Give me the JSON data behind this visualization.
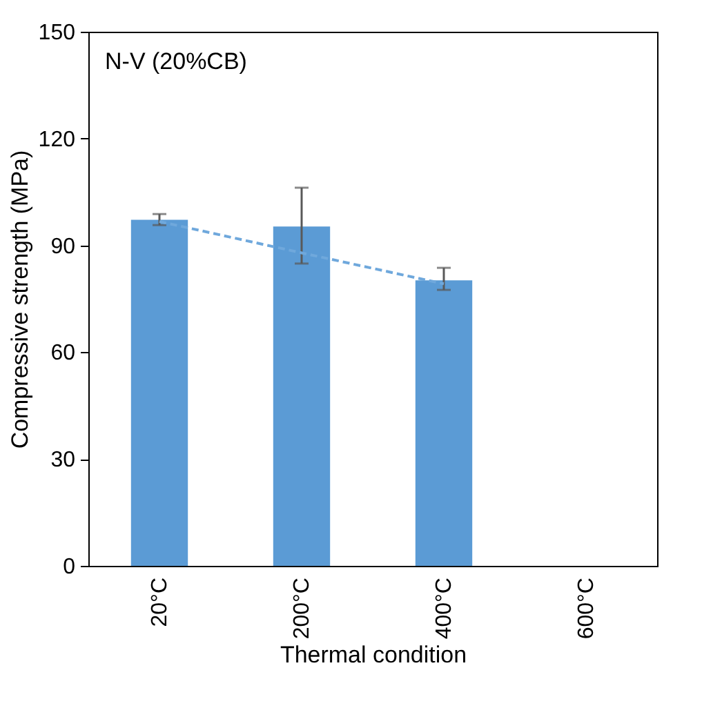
{
  "chart_data": {
    "type": "bar",
    "xlabel": "Thermal condition",
    "ylabel": "Compressive strength (MPa)",
    "categories": [
      "20°C",
      "200°C",
      "400°C",
      "600°C"
    ],
    "series": [
      {
        "color": "#5b9bd5",
        "values": [
          97.2,
          95.3,
          80.2,
          null
        ],
        "errors": [
          [
            95.7,
            98.8
          ],
          [
            84.9,
            106.2
          ],
          [
            77.5,
            83.7
          ],
          null
        ]
      },
      {
        "type": "line",
        "color": "#6fa8dc",
        "line_style": "dashed",
        "marker": "none",
        "x": [
          "20°C",
          "200°C",
          "400°C"
        ],
        "values": [
          96.7,
          87.9,
          79.2
        ]
      }
    ],
    "ylim": [
      0,
      150
    ],
    "yticks": [
      0,
      30,
      60,
      90,
      120,
      150
    ],
    "grid": false,
    "annotations": [
      "N-V (20%CB)"
    ]
  }
}
